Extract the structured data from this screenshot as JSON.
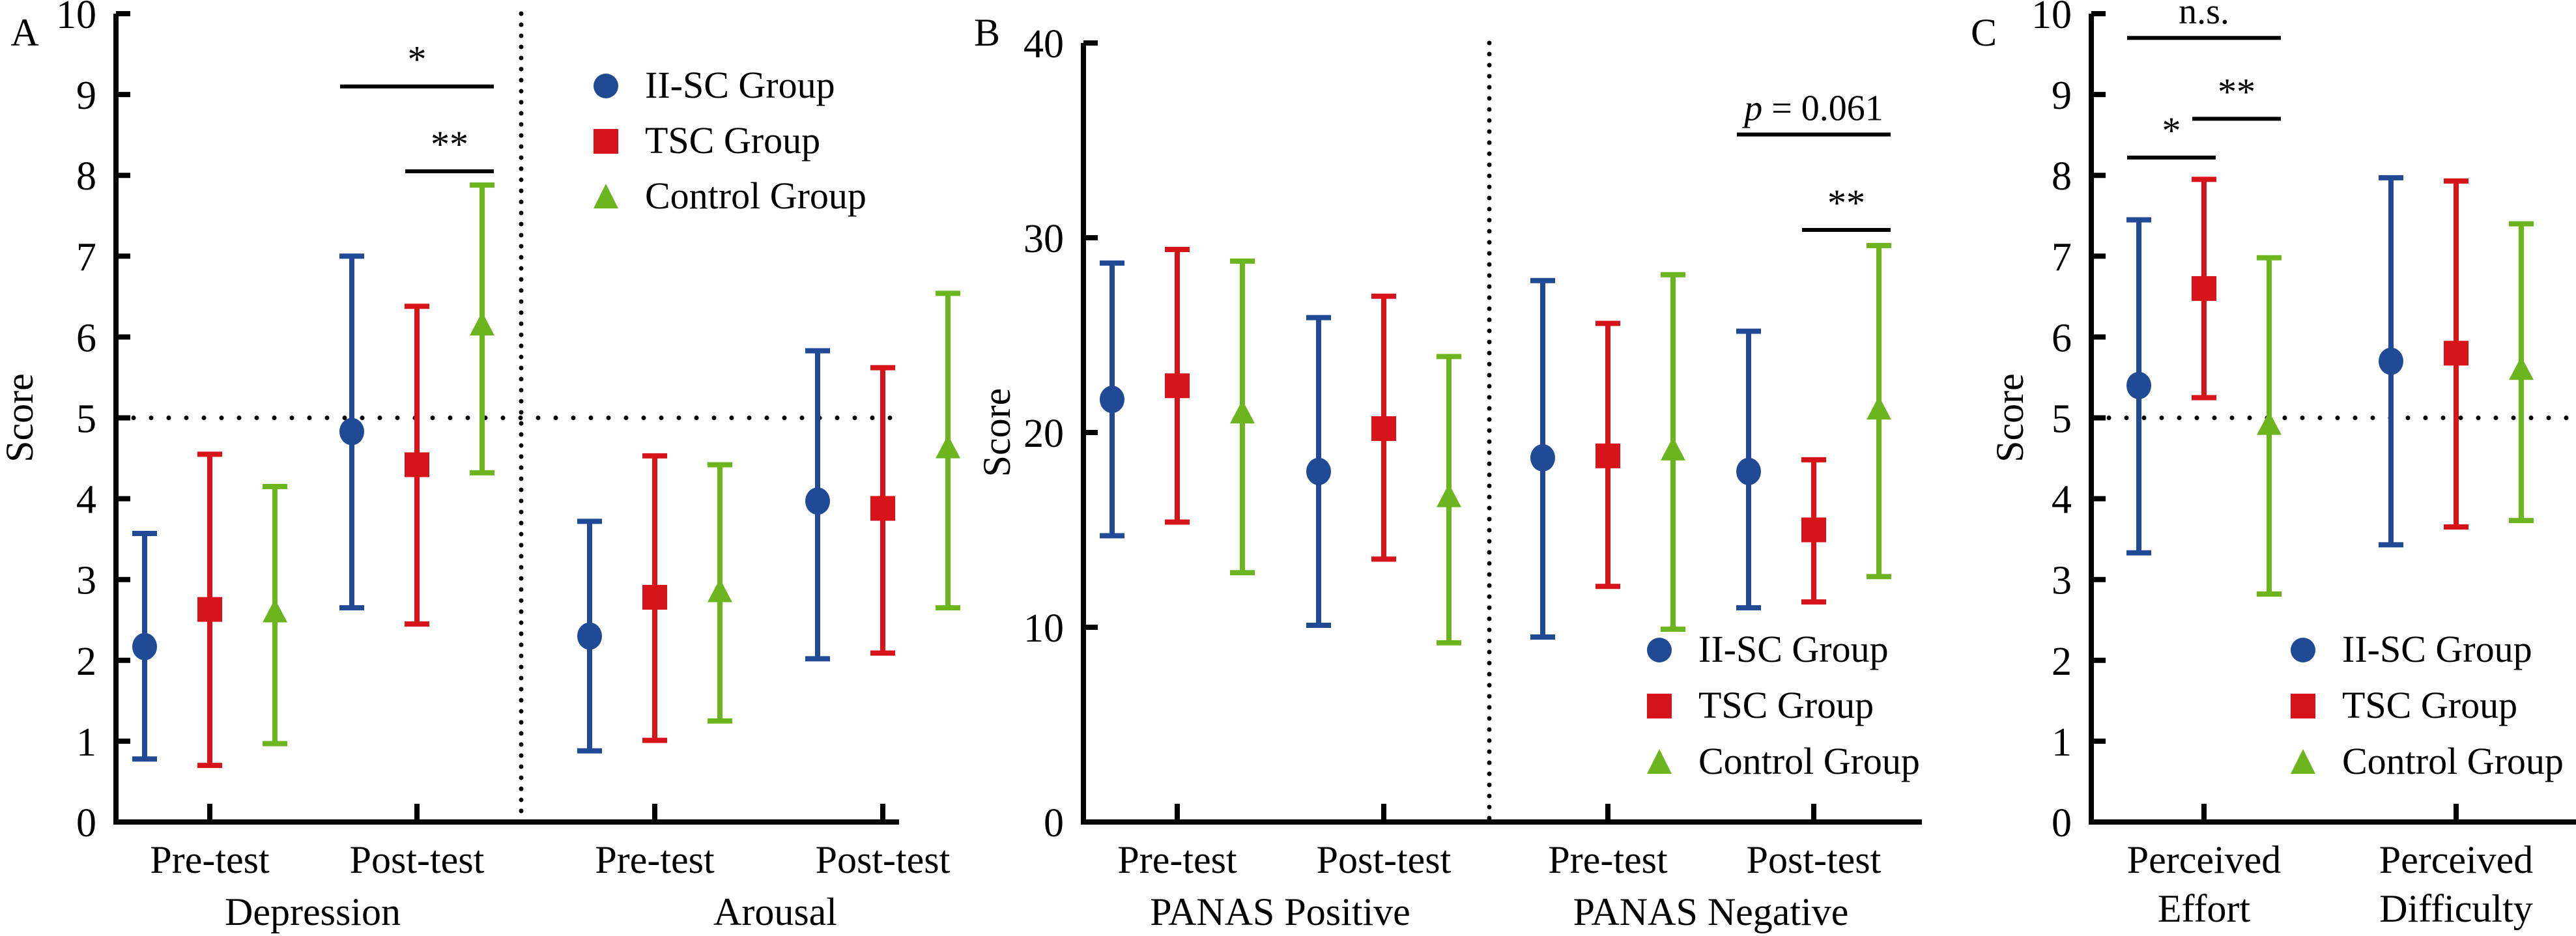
{
  "colors": {
    "II-SC Group": "#214A96",
    "TSC Group": "#D7141A",
    "Control Group": "#6CB51E",
    "axis": "#000000"
  },
  "chart_data": [
    {
      "panel_label": "A",
      "type": "scatter",
      "subtype": "errorbar",
      "ylabel": "Score",
      "ylim": [
        0,
        10
      ],
      "yticks": [
        0,
        1,
        2,
        3,
        4,
        5,
        6,
        7,
        8,
        9,
        10
      ],
      "reference_line": 5,
      "legend": {
        "entries": [
          "II-SC Group",
          "TSC Group",
          "Control Group"
        ],
        "placement": "top-right"
      },
      "groups": [
        {
          "name": "Depression",
          "categories": [
            "Pre-test",
            "Post-test"
          ]
        },
        {
          "name": "Arousal",
          "categories": [
            "Pre-test",
            "Post-test"
          ]
        }
      ],
      "series": [
        {
          "name": "II-SC Group",
          "marker": "circle",
          "means": [
            2.17,
            4.83,
            2.3,
            3.97
          ],
          "lower": [
            0.78,
            2.65,
            0.88,
            2.02
          ],
          "upper": [
            3.57,
            7.0,
            3.72,
            5.83
          ]
        },
        {
          "name": "TSC Group",
          "marker": "square",
          "means": [
            2.63,
            4.42,
            2.78,
            3.88
          ],
          "lower": [
            0.7,
            2.45,
            1.01,
            2.09
          ],
          "upper": [
            4.55,
            6.38,
            4.53,
            5.62
          ]
        },
        {
          "name": "Control Group",
          "marker": "triangle",
          "means": [
            2.55,
            6.1,
            2.8,
            4.58
          ],
          "lower": [
            0.97,
            4.32,
            1.25,
            2.65
          ],
          "upper": [
            4.15,
            7.88,
            4.42,
            6.54
          ]
        }
      ],
      "annotations": [
        {
          "text": "*",
          "between": [
            "II-SC Group",
            "Control Group"
          ],
          "at_category": 1,
          "y": 9.1
        },
        {
          "text": "**",
          "between": [
            "TSC Group",
            "Control Group"
          ],
          "at_category": 1,
          "y": 8.05
        }
      ]
    },
    {
      "panel_label": "B",
      "type": "scatter",
      "subtype": "errorbar",
      "ylabel": "Score",
      "ylim": [
        0,
        40
      ],
      "yticks": [
        0,
        10,
        20,
        30,
        40
      ],
      "legend": {
        "entries": [
          "II-SC Group",
          "TSC Group",
          "Control Group"
        ],
        "placement": "bottom-right"
      },
      "groups": [
        {
          "name": "PANAS Positive",
          "categories": [
            "Pre-test",
            "Post-test"
          ]
        },
        {
          "name": "PANAS Negative",
          "categories": [
            "Pre-test",
            "Post-test"
          ]
        }
      ],
      "series": [
        {
          "name": "II-SC Group",
          "marker": "circle",
          "means": [
            21.7,
            18.0,
            18.7,
            18.0
          ],
          "lower": [
            14.7,
            10.1,
            9.5,
            11.0
          ],
          "upper": [
            28.7,
            25.9,
            27.8,
            25.2
          ]
        },
        {
          "name": "TSC Group",
          "marker": "square",
          "means": [
            22.4,
            20.2,
            18.8,
            15.0
          ],
          "lower": [
            15.4,
            13.5,
            12.1,
            11.3
          ],
          "upper": [
            29.4,
            27.0,
            25.6,
            18.6
          ]
        },
        {
          "name": "Control Group",
          "marker": "triangle",
          "means": [
            20.8,
            16.5,
            18.9,
            21.0
          ],
          "lower": [
            12.8,
            9.2,
            9.9,
            12.6
          ],
          "upper": [
            28.8,
            23.9,
            28.1,
            29.6
          ]
        }
      ],
      "annotations": [
        {
          "text_prefix": "p",
          "text": " = 0.061",
          "between": [
            "II-SC Group",
            "Control Group"
          ],
          "at_category": 3,
          "y": 35.3
        },
        {
          "text": "**",
          "between": [
            "TSC Group",
            "Control Group"
          ],
          "at_category": 3,
          "y": 30.4
        }
      ]
    },
    {
      "panel_label": "C",
      "type": "scatter",
      "subtype": "errorbar",
      "ylabel": "Score",
      "ylim": [
        0,
        10
      ],
      "yticks": [
        0,
        1,
        2,
        3,
        4,
        5,
        6,
        7,
        8,
        9,
        10
      ],
      "reference_line": 5,
      "legend": {
        "entries": [
          "II-SC Group",
          "TSC Group",
          "Control Group"
        ],
        "placement": "bottom-right"
      },
      "groups": [
        {
          "name": "",
          "categories": [
            "Perceived\nEffort",
            "Perceived\nDifficulty"
          ]
        }
      ],
      "series": [
        {
          "name": "II-SC Group",
          "marker": "circle",
          "means": [
            5.4,
            5.7
          ],
          "lower": [
            3.33,
            3.43
          ],
          "upper": [
            7.45,
            7.97
          ]
        },
        {
          "name": "TSC Group",
          "marker": "square",
          "means": [
            6.6,
            5.8
          ],
          "lower": [
            5.25,
            3.65
          ],
          "upper": [
            7.95,
            7.93
          ]
        },
        {
          "name": "Control Group",
          "marker": "triangle",
          "means": [
            4.87,
            5.55
          ],
          "lower": [
            2.82,
            3.73
          ],
          "upper": [
            6.98,
            7.4
          ]
        }
      ],
      "annotations": [
        {
          "text": "n.s.",
          "between": [
            "II-SC Group",
            "Control Group"
          ],
          "at_category": 0,
          "y": 9.7
        },
        {
          "text": "**",
          "between": [
            "TSC Group",
            "Control Group"
          ],
          "at_category": 0,
          "y": 8.7
        },
        {
          "text": "*",
          "between": [
            "II-SC Group",
            "TSC Group"
          ],
          "at_category": 0,
          "y": 8.22
        }
      ]
    }
  ]
}
